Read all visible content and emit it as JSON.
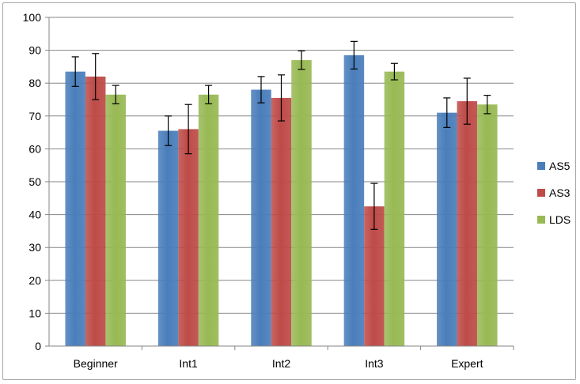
{
  "chart_data": {
    "type": "bar",
    "categories": [
      "Beginner",
      "Int1",
      "Int2",
      "Int3",
      "Expert"
    ],
    "series": [
      {
        "name": "AS5",
        "color": "#4a7ebb",
        "values": [
          83.5,
          65.5,
          78.0,
          88.5,
          71.0
        ],
        "errors": [
          4.5,
          4.5,
          4.0,
          4.2,
          4.5
        ]
      },
      {
        "name": "AS3",
        "color": "#be4b48",
        "values": [
          82.0,
          66.0,
          75.5,
          42.5,
          74.5
        ],
        "errors": [
          7.0,
          7.5,
          7.0,
          7.0,
          7.0
        ]
      },
      {
        "name": "LDS",
        "color": "#98b954",
        "values": [
          76.5,
          76.5,
          87.0,
          83.5,
          73.5
        ],
        "errors": [
          2.8,
          2.8,
          2.8,
          2.5,
          2.8
        ]
      }
    ],
    "y_ticks": [
      "0",
      "10",
      "20",
      "30",
      "40",
      "50",
      "60",
      "70",
      "80",
      "90",
      "100"
    ],
    "ylim": [
      0,
      100
    ],
    "grid": true,
    "legend": "right",
    "title": "",
    "xlabel": "",
    "ylabel": ""
  }
}
